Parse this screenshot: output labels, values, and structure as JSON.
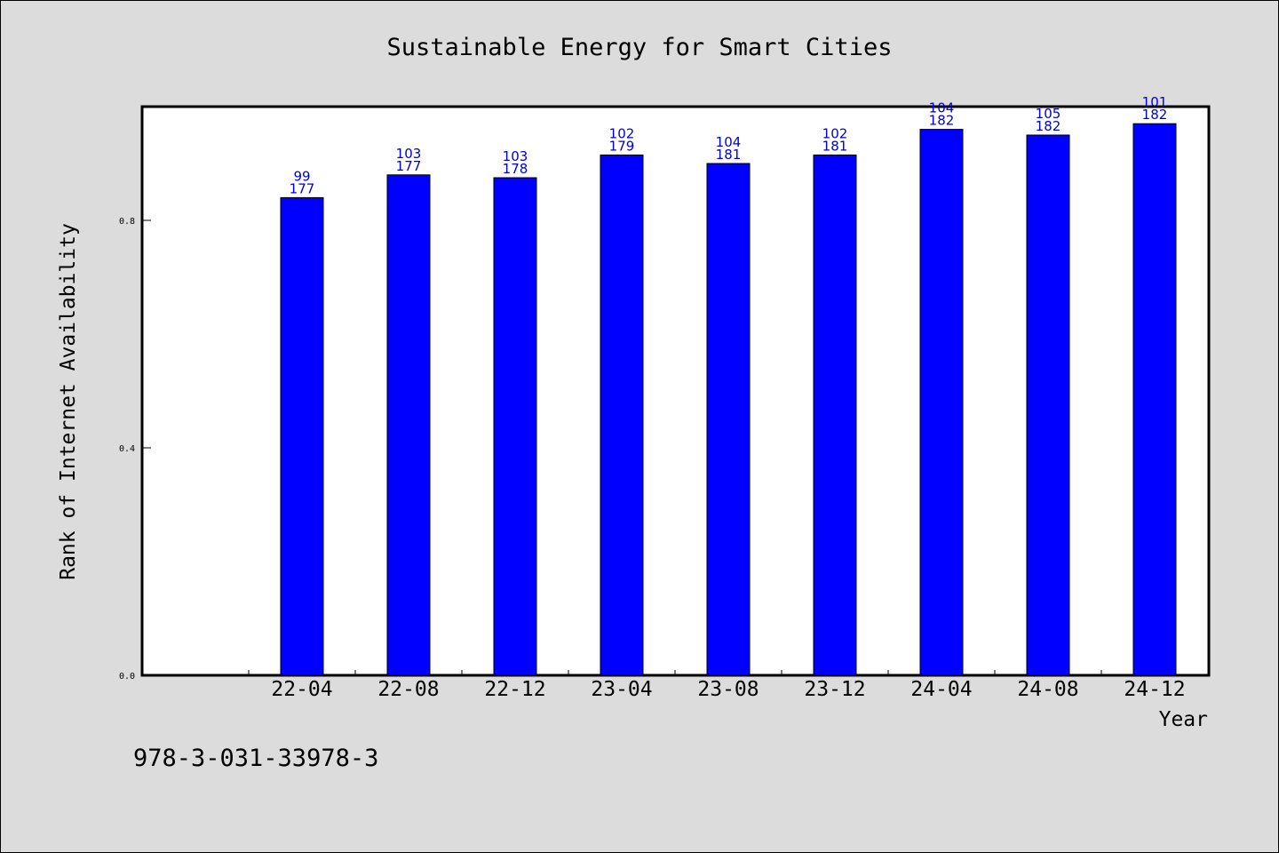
{
  "footer": "978-3-031-33978-3",
  "colors": {
    "bar": "#0000ff",
    "bar_stroke": "#000000",
    "label": "#0000cc",
    "background": "#dcdcdc",
    "plot_background": "#ffffff"
  },
  "chart_data": {
    "type": "bar",
    "title": "Sustainable Energy for Smart Cities",
    "xlabel": "Year",
    "ylabel": "Rank of Internet Availability",
    "categories": [
      "22-04",
      "22-08",
      "22-12",
      "23-04",
      "23-08",
      "23-12",
      "24-04",
      "24-08",
      "24-12"
    ],
    "series": [
      {
        "values": [
          0.84,
          0.88,
          0.875,
          0.915,
          0.9,
          0.915,
          0.96,
          0.95,
          0.97
        ]
      }
    ],
    "data_labels": [
      [
        "99",
        "177"
      ],
      [
        "103",
        "177"
      ],
      [
        "103",
        "178"
      ],
      [
        "102",
        "179"
      ],
      [
        "104",
        "181"
      ],
      [
        "102",
        "181"
      ],
      [
        "104",
        "182"
      ],
      [
        "105",
        "182"
      ],
      [
        "101",
        "182"
      ]
    ],
    "yticks": [
      "0.0",
      "0.4",
      "0.8"
    ],
    "ylim": [
      0,
      1.0
    ],
    "grid": false,
    "legend": "none"
  }
}
